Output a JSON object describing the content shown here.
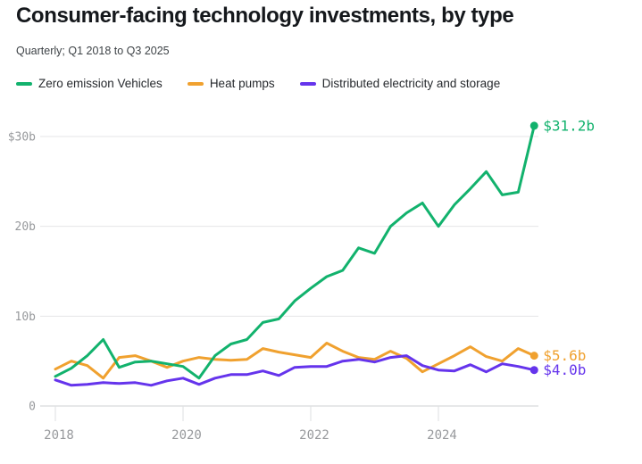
{
  "header": {
    "title": "Consumer-facing technology investments, by type",
    "subtitle": "Quarterly; Q1 2018 to Q3 2025"
  },
  "colors": {
    "green": "#12b26d",
    "orange": "#f0a12f",
    "purple": "#6534ec",
    "grid": "#e4e5e7",
    "axis": "#cfd1d3",
    "tick": "#dddfe1",
    "tick_text": "#97999c"
  },
  "chart_data": {
    "type": "line",
    "title": "Consumer-facing technology investments, by type",
    "subtitle": "Quarterly; Q1 2018 to Q3 2025",
    "unit": "billion USD",
    "grid": true,
    "legend_position": "top",
    "ylim": [
      0,
      33.5
    ],
    "y_ticks": [
      {
        "value": 30,
        "label": "$30b"
      },
      {
        "value": 20,
        "label": "20b"
      },
      {
        "value": 10,
        "label": "10b"
      },
      {
        "value": 0,
        "label": "0"
      }
    ],
    "x_ticks": [
      {
        "index": 0,
        "label": "2018"
      },
      {
        "index": 8,
        "label": "2020"
      },
      {
        "index": 16,
        "label": "2022"
      },
      {
        "index": 24,
        "label": "2024"
      }
    ],
    "x": [
      "Q1 2018",
      "Q2 2018",
      "Q3 2018",
      "Q4 2018",
      "Q1 2019",
      "Q2 2019",
      "Q3 2019",
      "Q4 2019",
      "Q1 2020",
      "Q2 2020",
      "Q3 2020",
      "Q4 2020",
      "Q1 2021",
      "Q2 2021",
      "Q3 2021",
      "Q4 2021",
      "Q1 2022",
      "Q2 2022",
      "Q3 2022",
      "Q4 2022",
      "Q1 2023",
      "Q2 2023",
      "Q3 2023",
      "Q4 2023",
      "Q1 2024",
      "Q2 2024",
      "Q3 2024",
      "Q4 2024",
      "Q1 2025",
      "Q2 2025",
      "Q3 2025"
    ],
    "series": [
      {
        "name": "Zero emission Vehicles",
        "color": "#12b26d",
        "end_label": "$31.2b",
        "values": [
          3.3,
          4.2,
          5.6,
          7.4,
          4.3,
          4.9,
          5.0,
          4.7,
          4.4,
          3.1,
          5.6,
          6.9,
          7.4,
          9.3,
          9.7,
          11.7,
          13.1,
          14.4,
          15.1,
          17.6,
          17.0,
          20.0,
          21.5,
          22.6,
          20.0,
          22.4,
          24.2,
          26.1,
          23.5,
          23.8,
          31.2
        ]
      },
      {
        "name": "Heat pumps",
        "color": "#f0a12f",
        "end_label": "$5.6b",
        "values": [
          4.1,
          5.0,
          4.5,
          3.1,
          5.4,
          5.6,
          5.0,
          4.3,
          5.0,
          5.4,
          5.2,
          5.1,
          5.2,
          6.4,
          6.0,
          5.7,
          5.4,
          7.0,
          6.1,
          5.4,
          5.2,
          6.1,
          5.3,
          3.8,
          4.7,
          5.6,
          6.6,
          5.5,
          5.0,
          6.4,
          5.6
        ]
      },
      {
        "name": "Distributed electricity and storage",
        "color": "#6534ec",
        "end_label": "$4.0b",
        "values": [
          2.9,
          2.3,
          2.4,
          2.6,
          2.5,
          2.6,
          2.3,
          2.8,
          3.1,
          2.4,
          3.1,
          3.5,
          3.5,
          3.9,
          3.4,
          4.3,
          4.4,
          4.4,
          5.0,
          5.2,
          4.9,
          5.4,
          5.6,
          4.5,
          4.0,
          3.9,
          4.6,
          3.8,
          4.7,
          4.4,
          4.0
        ]
      }
    ]
  }
}
